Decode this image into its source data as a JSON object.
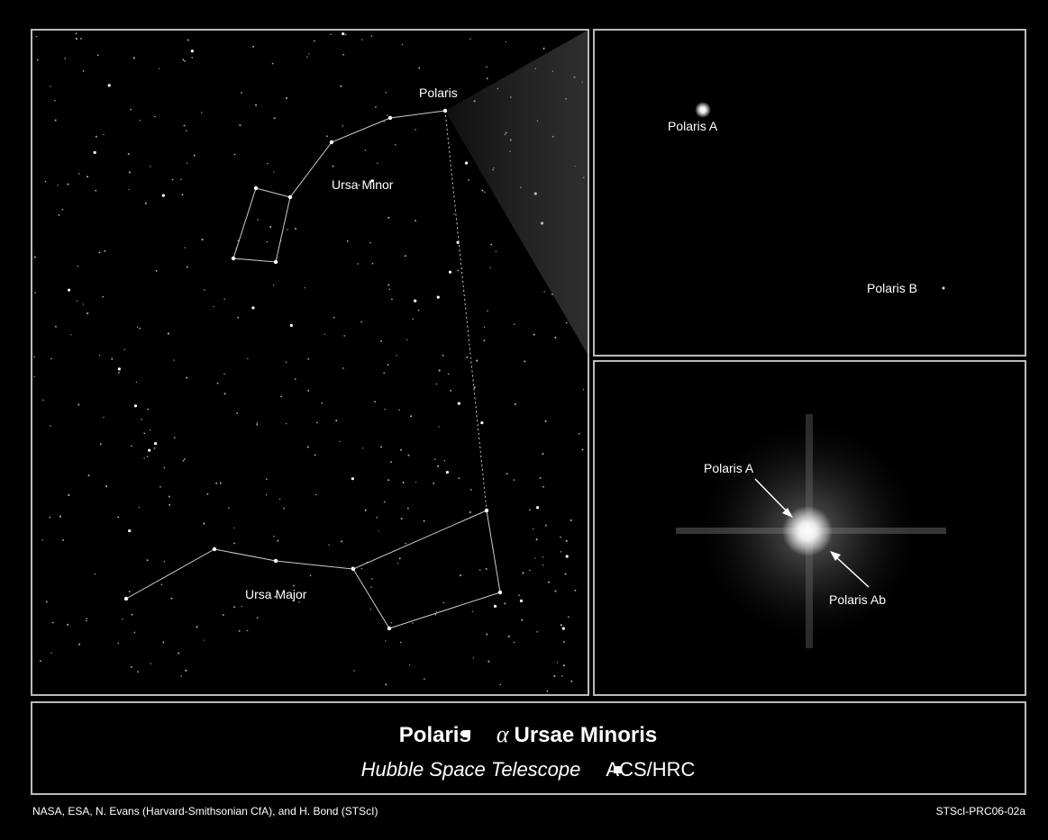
{
  "wide_field": {
    "labels": {
      "polaris": "Polaris",
      "ursa_minor": "Ursa Minor",
      "ursa_major": "Ursa Major"
    }
  },
  "zoom_top": {
    "labels": {
      "polaris_a": "Polaris A",
      "polaris_b": "Polaris B"
    }
  },
  "zoom_bottom": {
    "labels": {
      "polaris_a": "Polaris A",
      "polaris_ab": "Polaris Ab"
    }
  },
  "caption": {
    "title": [
      "Polaris",
      "α",
      "Ursae Minoris"
    ],
    "subtitle": [
      "Hubble Space Telescope",
      "ACS/HRC"
    ]
  },
  "credits": {
    "left": "NASA, ESA, N. Evans (Harvard-Smithsonian CfA), and H. Bond (STScI)",
    "right": "STScI-PRC06-02a"
  }
}
